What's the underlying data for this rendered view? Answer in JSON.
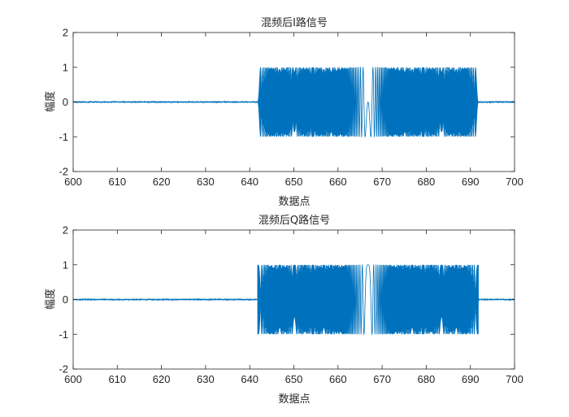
{
  "colors": {
    "signal": "#0072BD",
    "axis": "#262626",
    "background": "#ffffff"
  },
  "chart_data": [
    {
      "type": "line",
      "title": "混频后I路信号",
      "xlabel": "数据点",
      "ylabel": "幅度",
      "xlim": [
        600,
        700
      ],
      "ylim": [
        -2,
        2
      ],
      "xticks": [
        600,
        610,
        620,
        630,
        640,
        650,
        660,
        670,
        680,
        690,
        700
      ],
      "yticks": [
        -2,
        -1,
        0,
        1,
        2
      ],
      "grid": false,
      "signal": {
        "noise_amplitude": 0.01,
        "burst_start": 641.8,
        "burst_end": 691.8,
        "centre": 666.8,
        "chirp_rate": 0.6,
        "phase": 1.5708,
        "peak": 1
      }
    },
    {
      "type": "line",
      "title": "混频后Q路信号",
      "xlabel": "数据点",
      "ylabel": "幅度",
      "xlim": [
        600,
        700
      ],
      "ylim": [
        -2,
        2
      ],
      "xticks": [
        600,
        610,
        620,
        630,
        640,
        650,
        660,
        670,
        680,
        690,
        700
      ],
      "yticks": [
        -2,
        -1,
        0,
        1,
        2
      ],
      "grid": false,
      "signal": {
        "noise_amplitude": 0.01,
        "burst_start": 641.8,
        "burst_end": 691.8,
        "centre": 666.8,
        "chirp_rate": 0.6,
        "phase": 0,
        "peak": 1
      }
    }
  ]
}
